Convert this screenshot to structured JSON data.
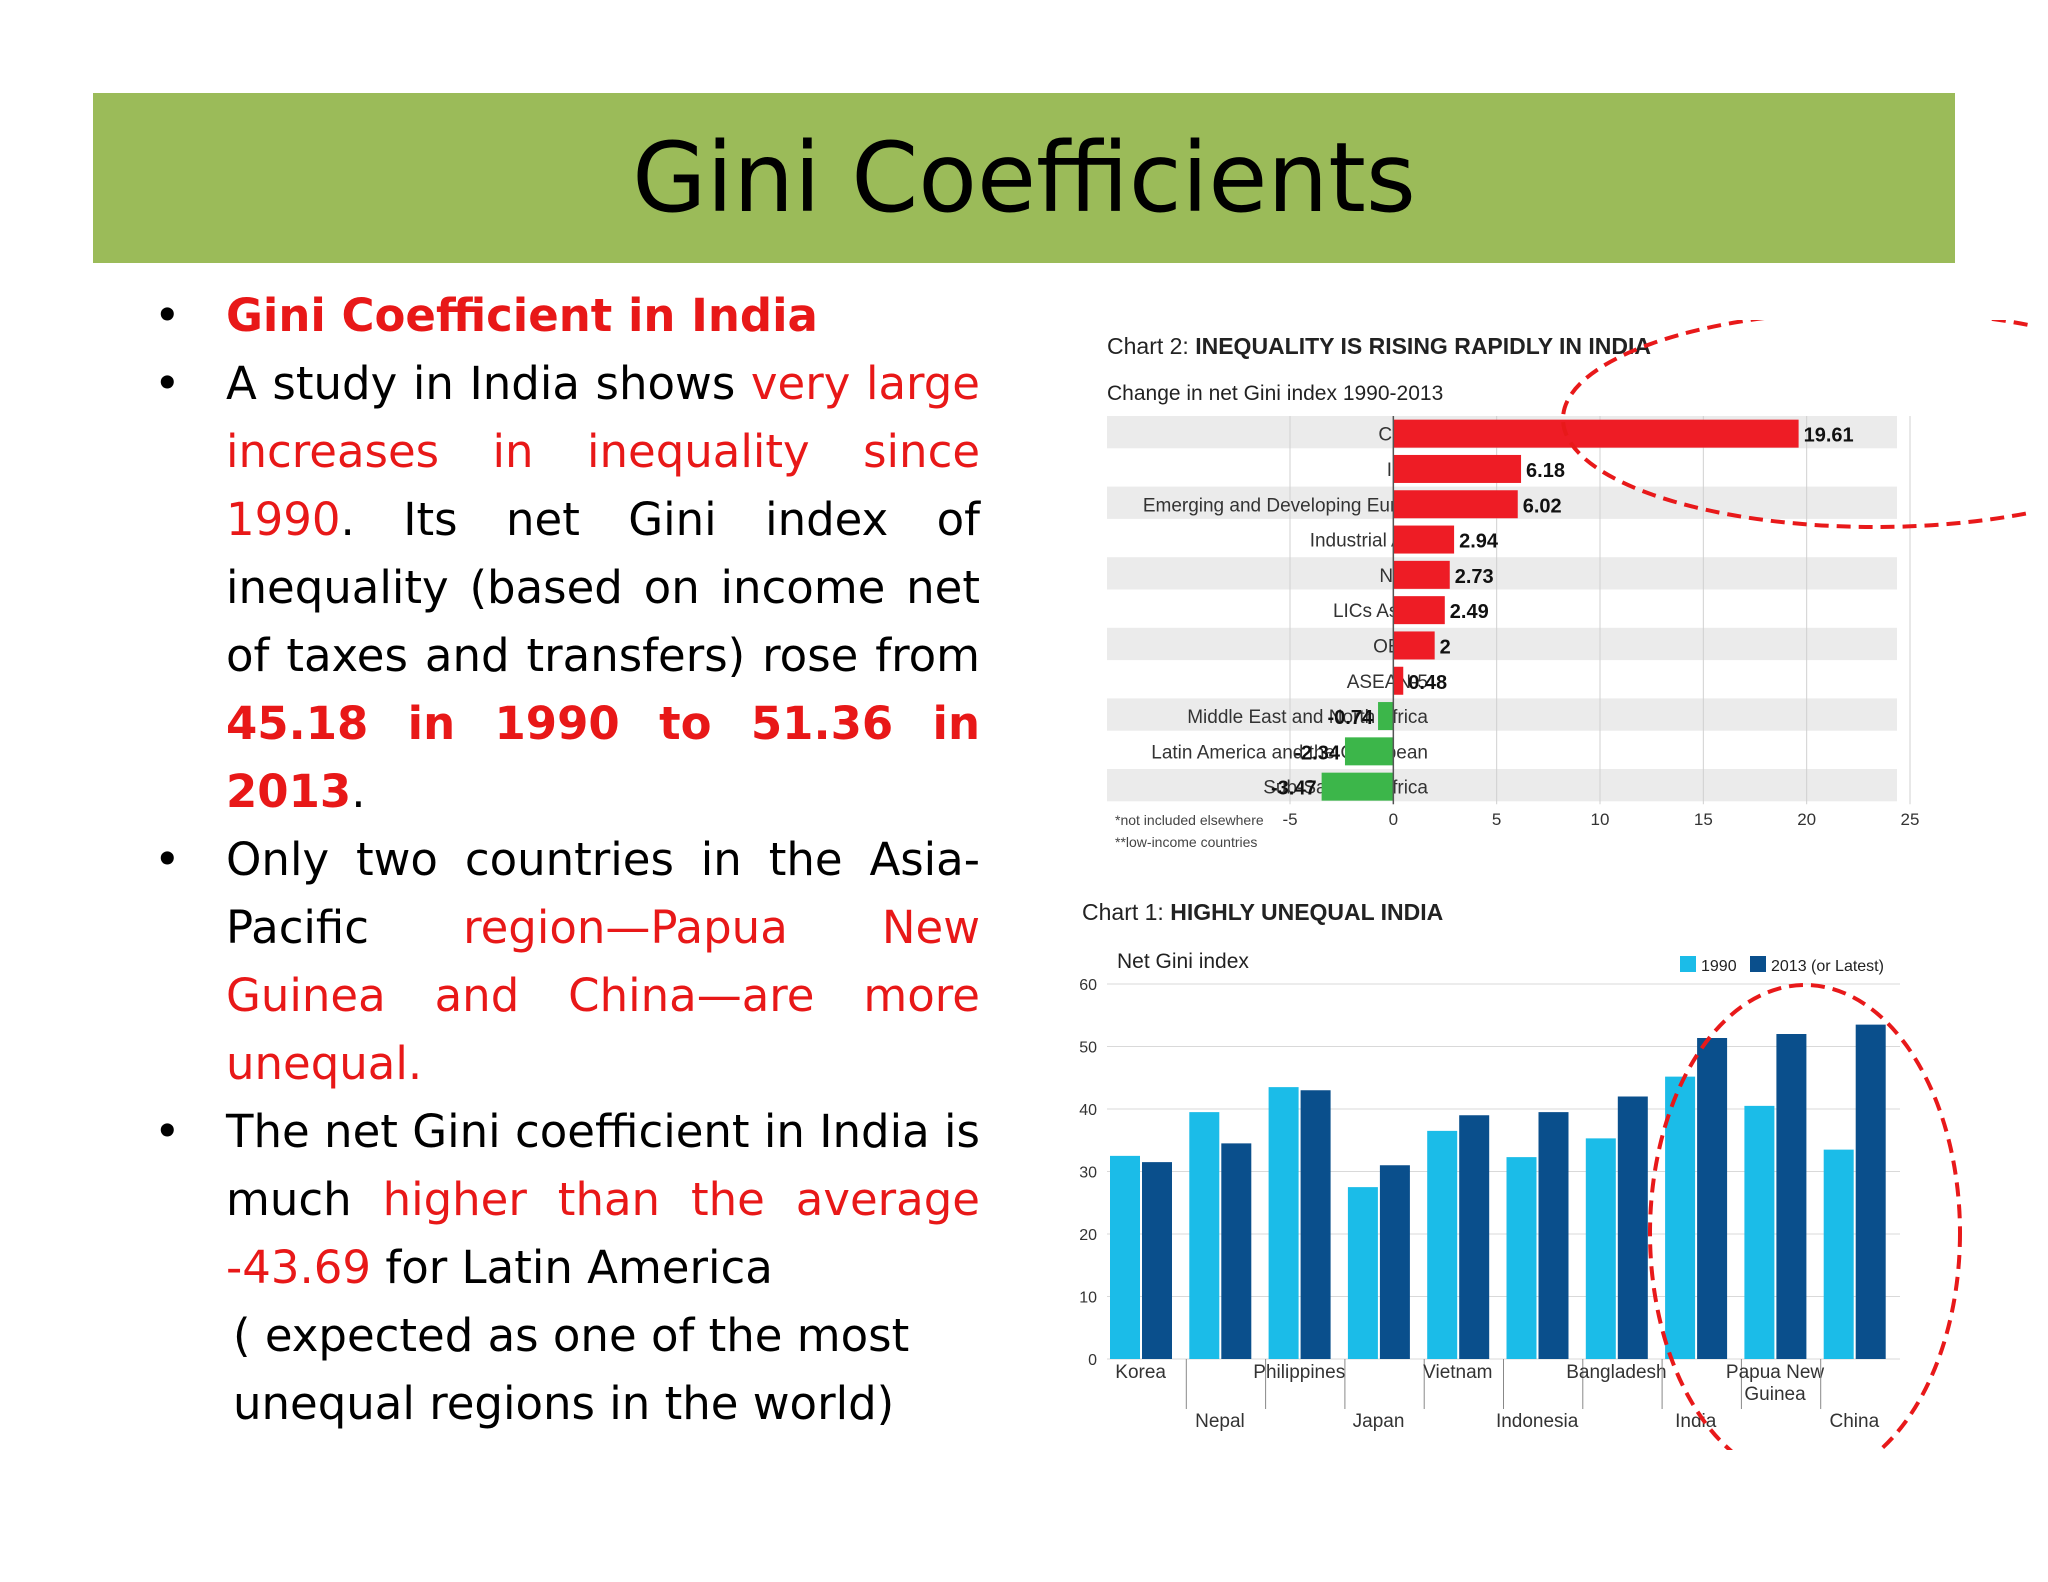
{
  "slide": {
    "title": "Gini Coefficients"
  },
  "bullets": {
    "b1": "Gini Coefficient in India",
    "b2_pre": "A study in India shows ",
    "b2_red": "very large increases in inequality since 1990",
    "b2_mid": ". Its net Gini index of inequality (based on income net of taxes and transfers) rose from ",
    "b2_bold": "45.18 in 1990 to 51.36 in 2013",
    "b2_end": ".",
    "b3_pre": "Only two countries in the Asia-Pacific ",
    "b3_red": "region—Papua New Guinea and China—are more unequal.",
    "b4_pre": "The net Gini coefficient in India is much ",
    "b4_red1": "higher than the average",
    "b4_red2": "-43.69",
    "b4_post": " for Latin America",
    "b4_note1": "( expected as one of the most",
    "b4_note2": "unequal regions in the world)"
  },
  "chart_data": [
    {
      "type": "bar",
      "orientation": "horizontal",
      "title_prefix": "Chart 2: ",
      "title": "INEQUALITY IS RISING RAPIDLY IN INDIA",
      "subtitle": "Change in net Gini index 1990-2013",
      "categories": [
        "China",
        "India",
        "Emerging and Developing Europe",
        "Industrial Asia",
        "NIEs*",
        "LICs Asia**",
        "OECD",
        "ASEAN-5",
        "Middle East and North Africa",
        "Latin America and the Caribbean",
        "Sub-Saharan Africa"
      ],
      "values": [
        19.61,
        6.18,
        6.02,
        2.94,
        2.73,
        2.49,
        2,
        0.48,
        -0.74,
        -2.34,
        -3.47
      ],
      "value_labels": [
        "19.61",
        "6.18",
        "6.02",
        "2.94",
        "2.73",
        "2.49",
        "2",
        "0.48",
        "-0.74",
        "-2.34",
        "-3.47"
      ],
      "xlim": [
        -5,
        25
      ],
      "xticks": [
        -5,
        0,
        5,
        10,
        15,
        20,
        25
      ],
      "footnotes": [
        "*not included elsewhere",
        "**low-income countries"
      ],
      "colors": {
        "positive": "#ee1c25",
        "negative": "#3cb64a",
        "band": "#ebebeb"
      }
    },
    {
      "type": "bar",
      "title_prefix": "Chart 1: ",
      "title": "HIGHLY UNEQUAL INDIA",
      "ylabel": "Net Gini index",
      "categories": [
        "Korea",
        "Nepal",
        "Philippines",
        "Japan",
        "Vietnam",
        "Indonesia",
        "Bangladesh",
        "India",
        "Papua New Guinea",
        "China"
      ],
      "series": [
        {
          "name": "1990",
          "color": "#1bbce8",
          "values": [
            32.5,
            39.5,
            43.5,
            27.5,
            36.5,
            32.3,
            35.3,
            45.18,
            40.5,
            33.5
          ]
        },
        {
          "name": "2013 (or Latest)",
          "color": "#0a4f8c",
          "values": [
            31.5,
            34.5,
            43.0,
            31.0,
            39.0,
            39.5,
            42.0,
            51.36,
            52.0,
            53.5
          ]
        }
      ],
      "ylim": [
        0,
        60
      ],
      "yticks": [
        0,
        10,
        20,
        30,
        40,
        50,
        60
      ],
      "colors": {
        "grid": "#d9d9d9",
        "highlight": "#e8191a"
      }
    }
  ]
}
